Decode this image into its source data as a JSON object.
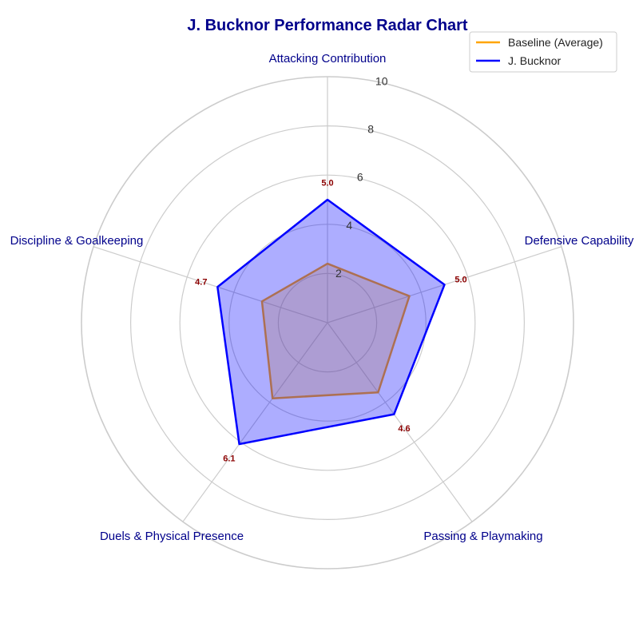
{
  "chart_data": {
    "type": "radar",
    "title": "J. Bucknor Performance Radar Chart",
    "categories": [
      "Attacking Contribution",
      "Defensive Capability",
      "Passing & Playmaking",
      "Duels & Physical Presence",
      "Discipline & Goalkeeping"
    ],
    "radial_ticks": [
      "2",
      "4",
      "6",
      "8",
      "10"
    ],
    "rlim": [
      0,
      10
    ],
    "grid": true,
    "legend_position": "top-right",
    "series": [
      {
        "name": "Baseline (Average)",
        "values": [
          2.4,
          3.5,
          3.5,
          3.8,
          2.8
        ],
        "color": "#ffa500",
        "fill": "#ffa500"
      },
      {
        "name": "J. Bucknor",
        "values": [
          5.0,
          5.0,
          4.6,
          6.1,
          4.7
        ],
        "color": "#0000ff",
        "fill": "#0000ff",
        "value_labels": [
          "5.0",
          "5.0",
          "4.6",
          "6.1",
          "4.7"
        ]
      }
    ]
  }
}
